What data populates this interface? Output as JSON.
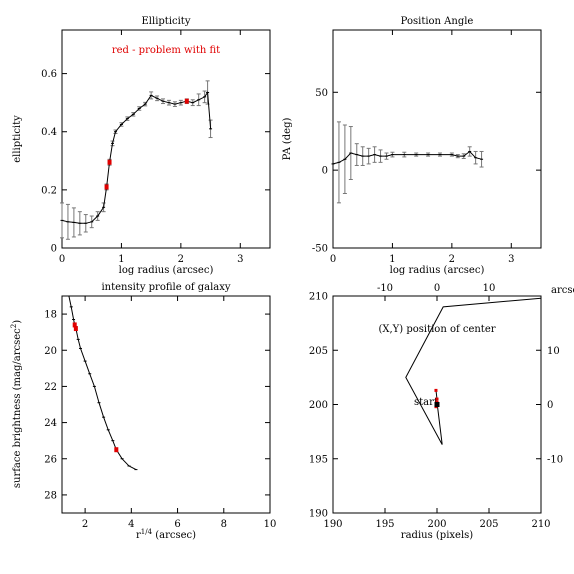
{
  "colors": {
    "problem": "#e00000",
    "line": "#000000",
    "errorbar": "#777777"
  },
  "chart_data": [
    {
      "type": "line",
      "title": "Ellipticity",
      "xlabel": "log radius (arcsec)",
      "ylabel": "ellipticity",
      "xlim": [
        0,
        3.5
      ],
      "ylim": [
        0,
        0.75
      ],
      "xticks": [
        0,
        1,
        2,
        3
      ],
      "yticks": [
        0,
        0.2,
        0.4,
        0.6
      ],
      "note": "red - problem with fit",
      "points": [
        {
          "x": 0.0,
          "y": 0.095,
          "e": 0.06
        },
        {
          "x": 0.1,
          "y": 0.09,
          "e": 0.06
        },
        {
          "x": 0.2,
          "y": 0.088,
          "e": 0.05
        },
        {
          "x": 0.3,
          "y": 0.085,
          "e": 0.04
        },
        {
          "x": 0.4,
          "y": 0.085,
          "e": 0.03
        },
        {
          "x": 0.5,
          "y": 0.09,
          "e": 0.02
        },
        {
          "x": 0.6,
          "y": 0.11,
          "e": 0.015
        },
        {
          "x": 0.7,
          "y": 0.14,
          "e": 0.015
        },
        {
          "x": 0.75,
          "y": 0.21,
          "e": 0.01,
          "bad": true
        },
        {
          "x": 0.8,
          "y": 0.295,
          "e": 0.01,
          "bad": true
        },
        {
          "x": 0.85,
          "y": 0.36,
          "e": 0.008
        },
        {
          "x": 0.9,
          "y": 0.4,
          "e": 0.006
        },
        {
          "x": 1.0,
          "y": 0.425,
          "e": 0.006
        },
        {
          "x": 1.1,
          "y": 0.445,
          "e": 0.006
        },
        {
          "x": 1.2,
          "y": 0.46,
          "e": 0.006
        },
        {
          "x": 1.3,
          "y": 0.48,
          "e": 0.006
        },
        {
          "x": 1.4,
          "y": 0.495,
          "e": 0.006
        },
        {
          "x": 1.5,
          "y": 0.525,
          "e": 0.012
        },
        {
          "x": 1.6,
          "y": 0.515,
          "e": 0.008
        },
        {
          "x": 1.7,
          "y": 0.505,
          "e": 0.008
        },
        {
          "x": 1.8,
          "y": 0.5,
          "e": 0.008
        },
        {
          "x": 1.9,
          "y": 0.495,
          "e": 0.008
        },
        {
          "x": 2.0,
          "y": 0.5,
          "e": 0.008
        },
        {
          "x": 2.1,
          "y": 0.505,
          "e": 0.008,
          "bad": true
        },
        {
          "x": 2.2,
          "y": 0.5,
          "e": 0.01
        },
        {
          "x": 2.3,
          "y": 0.51,
          "e": 0.02
        },
        {
          "x": 2.4,
          "y": 0.52,
          "e": 0.02
        },
        {
          "x": 2.45,
          "y": 0.535,
          "e": 0.04
        },
        {
          "x": 2.5,
          "y": 0.41,
          "e": 0.03
        }
      ]
    },
    {
      "type": "line",
      "title": "Position Angle",
      "xlabel": "log radius (arcsec)",
      "ylabel": "PA (deg)",
      "xlim": [
        0,
        3.5
      ],
      "ylim": [
        -50,
        90
      ],
      "xticks": [
        0,
        1,
        2,
        3
      ],
      "yticks": [
        -50,
        0,
        50
      ],
      "points": [
        {
          "x": 0.0,
          "y": 4,
          "e": 0
        },
        {
          "x": 0.1,
          "y": 5,
          "e": 26
        },
        {
          "x": 0.2,
          "y": 7,
          "e": 22
        },
        {
          "x": 0.3,
          "y": 11,
          "e": 17
        },
        {
          "x": 0.4,
          "y": 10,
          "e": 7
        },
        {
          "x": 0.5,
          "y": 9,
          "e": 6
        },
        {
          "x": 0.6,
          "y": 9,
          "e": 5
        },
        {
          "x": 0.7,
          "y": 10,
          "e": 5
        },
        {
          "x": 0.8,
          "y": 9,
          "e": 4
        },
        {
          "x": 0.9,
          "y": 9,
          "e": 2
        },
        {
          "x": 1.0,
          "y": 10,
          "e": 1.5
        },
        {
          "x": 1.2,
          "y": 10,
          "e": 1.5
        },
        {
          "x": 1.4,
          "y": 10,
          "e": 1
        },
        {
          "x": 1.6,
          "y": 10,
          "e": 1
        },
        {
          "x": 1.8,
          "y": 10,
          "e": 1
        },
        {
          "x": 2.0,
          "y": 10,
          "e": 1
        },
        {
          "x": 2.1,
          "y": 9,
          "e": 1
        },
        {
          "x": 2.2,
          "y": 9,
          "e": 1.5
        },
        {
          "x": 2.3,
          "y": 12,
          "e": 3
        },
        {
          "x": 2.4,
          "y": 8,
          "e": 4
        },
        {
          "x": 2.5,
          "y": 7,
          "e": 5
        }
      ]
    },
    {
      "type": "line",
      "title": "intensity profile of galaxy",
      "xlabel": "r",
      "xlabel_sup": "1/4",
      "xlabel_tail": " (arcsec)",
      "ylabel": "surface brightness (mag/arcsec",
      "ylabel_sup": "2",
      "ylabel_tail": ")",
      "xlim": [
        1,
        10
      ],
      "ylim": [
        29,
        17
      ],
      "xticks": [
        2,
        4,
        6,
        8,
        10
      ],
      "yticks": [
        18,
        20,
        22,
        24,
        26,
        28
      ],
      "points": [
        {
          "x": 1.3,
          "y": 17.0
        },
        {
          "x": 1.4,
          "y": 17.6
        },
        {
          "x": 1.5,
          "y": 18.3
        },
        {
          "x": 1.55,
          "y": 18.6,
          "bad": true
        },
        {
          "x": 1.6,
          "y": 18.8,
          "bad": true
        },
        {
          "x": 1.7,
          "y": 19.4
        },
        {
          "x": 1.8,
          "y": 19.9
        },
        {
          "x": 2.0,
          "y": 20.6
        },
        {
          "x": 2.2,
          "y": 21.3
        },
        {
          "x": 2.4,
          "y": 22.0
        },
        {
          "x": 2.6,
          "y": 22.9
        },
        {
          "x": 2.8,
          "y": 23.7
        },
        {
          "x": 3.0,
          "y": 24.4
        },
        {
          "x": 3.2,
          "y": 25.0
        },
        {
          "x": 3.35,
          "y": 25.5,
          "bad": true
        },
        {
          "x": 3.6,
          "y": 26.0
        },
        {
          "x": 3.9,
          "y": 26.4
        },
        {
          "x": 4.2,
          "y": 26.6
        }
      ]
    },
    {
      "type": "line",
      "title": "(X,Y) position of center",
      "xlabel": "radius (pixels)",
      "xlabel_top": "arcsec",
      "xlim": [
        190,
        210
      ],
      "ylim": [
        190,
        210
      ],
      "xticks": [
        190,
        195,
        200,
        205,
        210
      ],
      "yticks": [
        190,
        195,
        200,
        205,
        210
      ],
      "top_ticks": [
        -10,
        0,
        10
      ],
      "right_ticks": [
        10,
        0,
        -10
      ],
      "start_label": "start",
      "path": [
        {
          "x": 199.9,
          "y": 201.3
        },
        {
          "x": 200.0,
          "y": 200.5
        },
        {
          "x": 199.9,
          "y": 199.8
        },
        {
          "x": 200.0,
          "y": 200.2
        },
        {
          "x": 200.5,
          "y": 196.3
        },
        {
          "x": 197.0,
          "y": 202.5
        },
        {
          "x": 200.6,
          "y": 209.0
        },
        {
          "x": 210.0,
          "y": 209.8
        }
      ],
      "start": {
        "x": 200.0,
        "y": 200.0
      }
    }
  ]
}
